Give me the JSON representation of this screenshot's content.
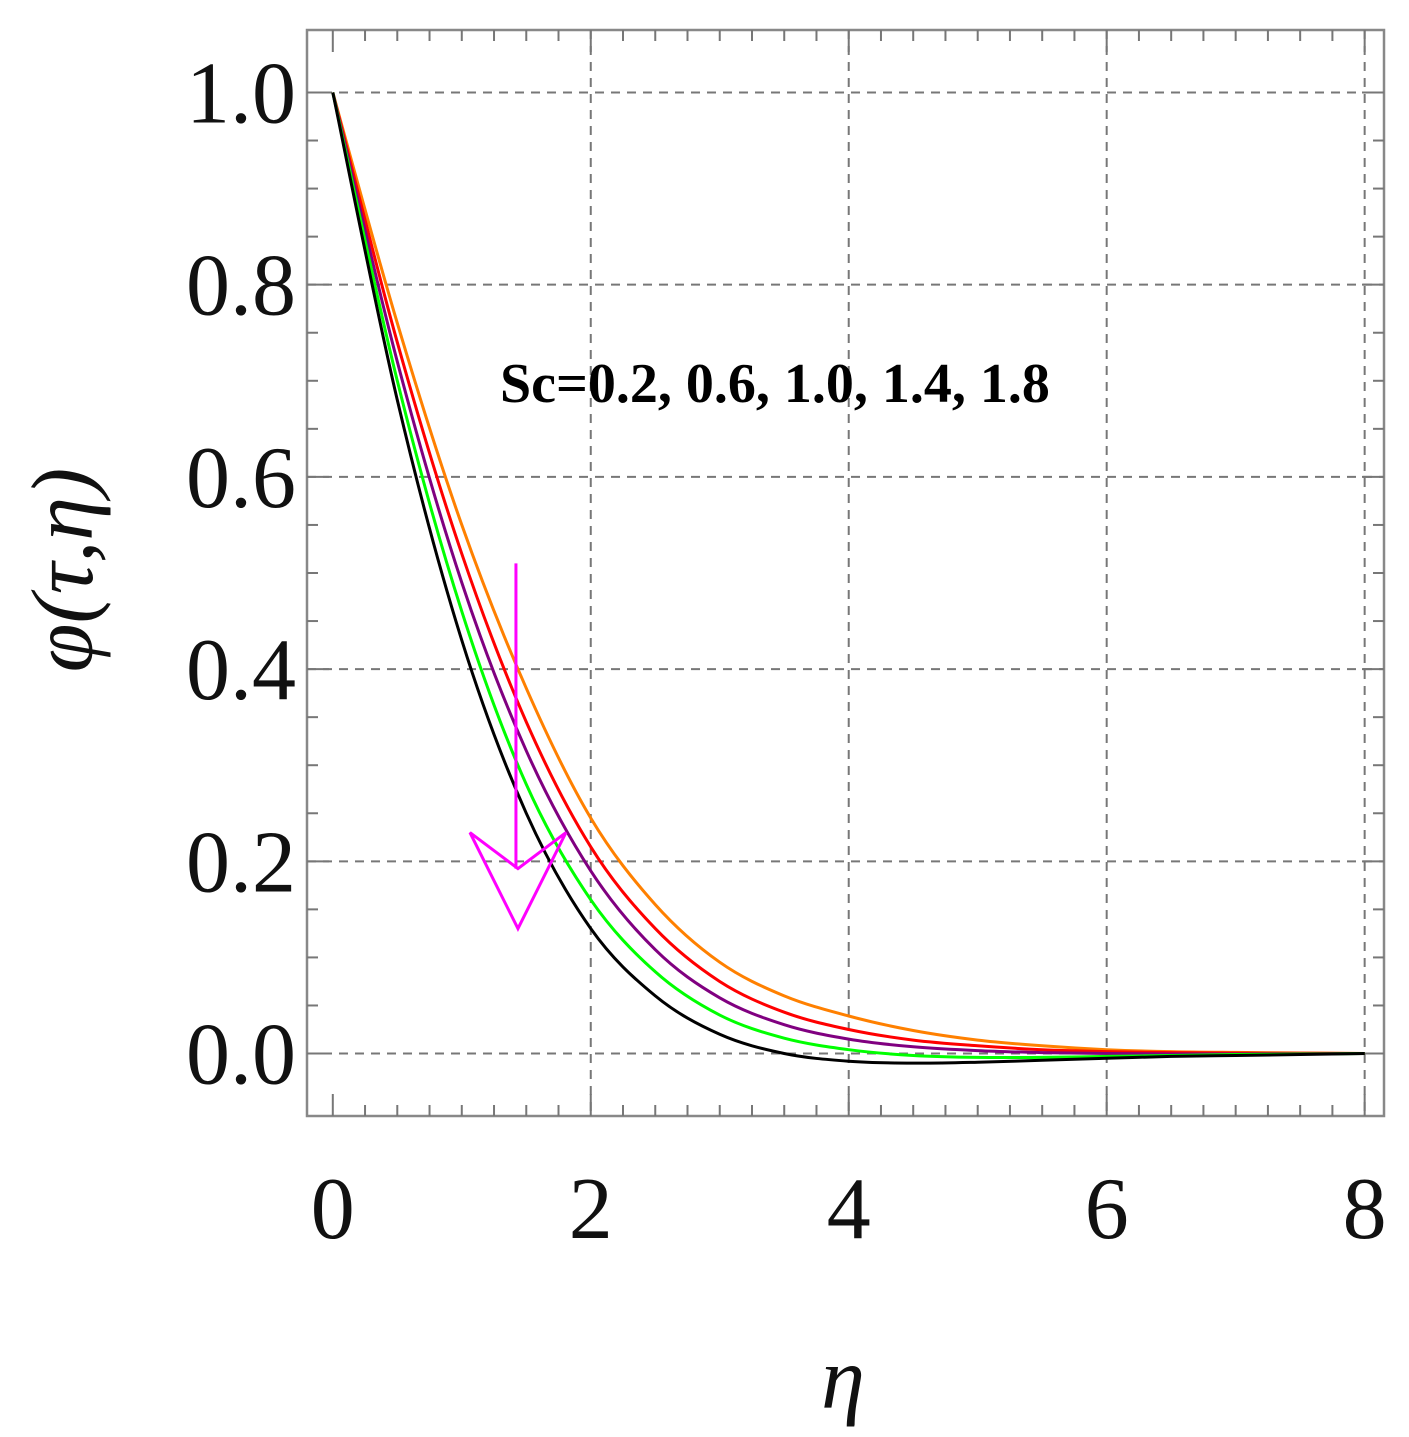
{
  "chart_data": {
    "type": "line",
    "xlabel": "η",
    "ylabel": "φ(τ,η)",
    "xlim": [
      -0.2,
      8.15
    ],
    "ylim": [
      -0.065,
      1.065
    ],
    "xticks": [
      0,
      2,
      4,
      6,
      8
    ],
    "xtick_labels": [
      "0",
      "2",
      "4",
      "6",
      "8"
    ],
    "yticks": [
      0.0,
      0.2,
      0.4,
      0.6,
      0.8,
      1.0
    ],
    "ytick_labels": [
      "0.0",
      "0.2",
      "0.4",
      "0.6",
      "0.8",
      "1.0"
    ],
    "grid": true,
    "annotation": "Sc=0.2, 0.6, 1.0, 1.4, 1.8",
    "arrow": {
      "x_start": 1.42,
      "y_start": 0.51,
      "x_end": 1.42,
      "y_end": 0.13,
      "color": "#ff00ff",
      "direction": "down"
    },
    "x": [
      0,
      0.5,
      1,
      1.5,
      2,
      2.5,
      3,
      3.5,
      4,
      4.5,
      5,
      5.5,
      6,
      6.5,
      7,
      7.5,
      8
    ],
    "series": [
      {
        "color": "#ff8000",
        "values": [
          1.0,
          0.76,
          0.55,
          0.38,
          0.245,
          0.155,
          0.095,
          0.06,
          0.039,
          0.024,
          0.014,
          0.008,
          0.004,
          0.002,
          0.0012,
          0.0006,
          0.0
        ]
      },
      {
        "color": "#ff0000",
        "values": [
          1.0,
          0.74,
          0.52,
          0.345,
          0.215,
          0.13,
          0.075,
          0.043,
          0.025,
          0.014,
          0.008,
          0.004,
          0.002,
          0.001,
          0.0005,
          0.0002,
          0.0
        ]
      },
      {
        "color": "#800080",
        "values": [
          1.0,
          0.72,
          0.49,
          0.315,
          0.19,
          0.108,
          0.058,
          0.03,
          0.015,
          0.007,
          0.003,
          0.001,
          0.0,
          -0.0005,
          -0.0005,
          -0.0003,
          0.0
        ]
      },
      {
        "color": "#00ff00",
        "values": [
          1.0,
          0.7,
          0.46,
          0.28,
          0.16,
          0.085,
          0.04,
          0.016,
          0.004,
          -0.002,
          -0.004,
          -0.004,
          -0.003,
          -0.002,
          -0.001,
          -0.0005,
          0.0
        ]
      },
      {
        "color": "#000000",
        "values": [
          1.0,
          0.68,
          0.43,
          0.25,
          0.13,
          0.06,
          0.02,
          0.0,
          -0.008,
          -0.01,
          -0.009,
          -0.007,
          -0.005,
          -0.003,
          -0.002,
          -0.001,
          0.0
        ]
      }
    ]
  }
}
